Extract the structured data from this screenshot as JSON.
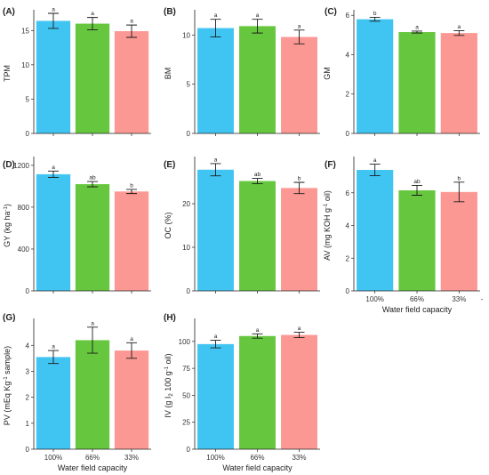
{
  "figure": {
    "colors": [
      "#40C4F2",
      "#66C73E",
      "#FB9893"
    ],
    "categories": [
      "100%",
      "66%",
      "33%"
    ],
    "x_axis_title": "Water field capacity",
    "extra_tick_label_panel_f": "-"
  },
  "chart_data": [
    {
      "id": "A",
      "type": "bar",
      "panel_label": "(A)",
      "ylabel": "TPM",
      "ylabel_sub": "",
      "ylabel_tail": "",
      "categories": [
        "100%",
        "66%",
        "33%"
      ],
      "values": [
        16.4,
        16.0,
        14.9
      ],
      "errors": [
        1.1,
        0.9,
        0.9
      ],
      "letters": [
        "a",
        "a",
        "a"
      ],
      "ylim": [
        0,
        17.5
      ],
      "yticks": [
        0,
        5,
        10,
        15
      ],
      "show_xticklabels": false,
      "show_xlabel": false
    },
    {
      "id": "B",
      "type": "bar",
      "panel_label": "(B)",
      "ylabel": "BM",
      "ylabel_sub": "",
      "ylabel_tail": "",
      "categories": [
        "100%",
        "66%",
        "33%"
      ],
      "values": [
        10.7,
        10.9,
        9.8
      ],
      "errors": [
        0.9,
        0.7,
        0.7
      ],
      "letters": [
        "a",
        "a",
        "a"
      ],
      "ylim": [
        0,
        12.2
      ],
      "yticks": [
        0,
        5,
        10
      ],
      "show_xticklabels": false,
      "show_xlabel": false
    },
    {
      "id": "C",
      "type": "bar",
      "panel_label": "(C)",
      "ylabel": "GM",
      "ylabel_sub": "",
      "ylabel_tail": "",
      "categories": [
        "100%",
        "66%",
        "33%"
      ],
      "values": [
        5.8,
        5.15,
        5.1
      ],
      "errors": [
        0.1,
        0.05,
        0.12
      ],
      "letters": [
        "b",
        "a",
        "a"
      ],
      "ylim": [
        0,
        6.1
      ],
      "yticks": [
        0,
        2,
        4,
        6
      ],
      "show_xticklabels": false,
      "show_xlabel": false
    },
    {
      "id": "D",
      "type": "bar",
      "panel_label": "(D)",
      "ylabel": "GY (kg ha",
      "ylabel_sub": "-1",
      "ylabel_tail": ")",
      "categories": [
        "100%",
        "66%",
        "33%"
      ],
      "values": [
        1115,
        1020,
        950
      ],
      "errors": [
        30,
        25,
        20
      ],
      "letters": [
        "a",
        "ab",
        "b"
      ],
      "ylim": [
        0,
        1250
      ],
      "yticks": [
        0,
        400,
        800,
        1200
      ],
      "show_xticklabels": false,
      "show_xlabel": false
    },
    {
      "id": "E",
      "type": "bar",
      "panel_label": "(E)",
      "ylabel": "OC (%)",
      "ylabel_sub": "",
      "ylabel_tail": "",
      "categories": [
        "100%",
        "66%",
        "33%"
      ],
      "values": [
        27.8,
        25.2,
        23.6
      ],
      "errors": [
        1.4,
        0.6,
        1.3
      ],
      "letters": [
        "a",
        "ab",
        "b"
      ],
      "ylim": [
        0,
        30
      ],
      "yticks": [
        0,
        10,
        20
      ],
      "show_xticklabels": false,
      "show_xlabel": false
    },
    {
      "id": "F",
      "type": "bar",
      "panel_label": "(F)",
      "ylabel": "AV (mg KOH g",
      "ylabel_sub": "-1",
      "ylabel_tail": " oil)",
      "categories": [
        "100%",
        "66%",
        "33%"
      ],
      "values": [
        7.4,
        6.15,
        6.05
      ],
      "errors": [
        0.35,
        0.3,
        0.6
      ],
      "letters": [
        "a",
        "ab",
        "b"
      ],
      "ylim": [
        0,
        8.0
      ],
      "yticks": [
        0,
        2,
        4,
        6
      ],
      "show_xticklabels": true,
      "show_xlabel": true
    },
    {
      "id": "G",
      "type": "bar",
      "panel_label": "(G)",
      "ylabel": "PV (mEq Kg",
      "ylabel_sub": "-1",
      "ylabel_tail": " sample)",
      "categories": [
        "100%",
        "66%",
        "33%"
      ],
      "values": [
        3.55,
        4.2,
        3.8
      ],
      "errors": [
        0.25,
        0.5,
        0.3
      ],
      "letters": [
        "a",
        "a",
        "a"
      ],
      "ylim": [
        0,
        4.9
      ],
      "yticks": [
        0,
        1,
        2,
        3,
        4
      ],
      "show_xticklabels": true,
      "show_xlabel": true
    },
    {
      "id": "H",
      "type": "bar",
      "panel_label": "(H)",
      "ylabel": "IV (g I",
      "ylabel_sub": "2",
      "ylabel_tail": " 100 g",
      "ylabel_sub2": "-1",
      "ylabel_tail2": " oil)",
      "categories": [
        "100%",
        "66%",
        "33%"
      ],
      "values": [
        97.5,
        105,
        106
      ],
      "errors": [
        3.5,
        2,
        2.5
      ],
      "letters": [
        "a",
        "a",
        "a"
      ],
      "ylim": [
        0,
        118
      ],
      "yticks": [
        0,
        25,
        50,
        75,
        100
      ],
      "show_xticklabels": true,
      "show_xlabel": true
    }
  ]
}
